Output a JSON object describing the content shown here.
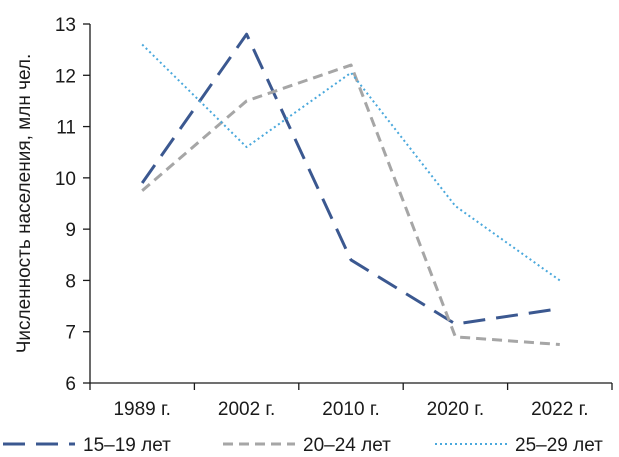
{
  "chart_data": {
    "type": "line",
    "title": "",
    "xlabel": "",
    "ylabel": "Численность населения, млн чел.",
    "categories": [
      "1989 г.",
      "2002 г.",
      "2010 г.",
      "2020 г.",
      "2022 г."
    ],
    "ylim": [
      6,
      13
    ],
    "yticks": [
      6,
      7,
      8,
      9,
      10,
      11,
      12,
      13
    ],
    "grid": false,
    "legend_position": "bottom",
    "series": [
      {
        "name": "15–19 лет",
        "values": [
          9.9,
          12.8,
          8.4,
          7.15,
          7.45
        ],
        "color": "#3b5890",
        "dash": "long-dash"
      },
      {
        "name": "20–24 лет",
        "values": [
          9.75,
          11.5,
          12.2,
          6.9,
          6.75
        ],
        "color": "#a6a6a6",
        "dash": "dash"
      },
      {
        "name": "25–29 лет",
        "values": [
          12.6,
          10.6,
          12.05,
          9.45,
          8.0
        ],
        "color": "#4aa8dc",
        "dash": "dot"
      }
    ]
  }
}
